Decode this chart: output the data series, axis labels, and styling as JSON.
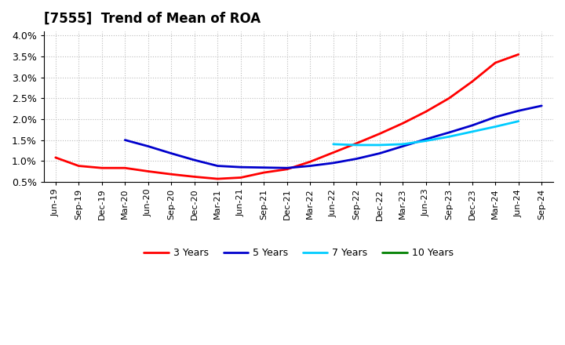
{
  "title": "[7555]  Trend of Mean of ROA",
  "x_labels": [
    "Jun-19",
    "Sep-19",
    "Dec-19",
    "Mar-20",
    "Jun-20",
    "Sep-20",
    "Dec-20",
    "Mar-21",
    "Jun-21",
    "Sep-21",
    "Dec-21",
    "Mar-22",
    "Jun-22",
    "Sep-22",
    "Dec-22",
    "Mar-23",
    "Jun-23",
    "Sep-23",
    "Dec-23",
    "Mar-24",
    "Jun-24",
    "Sep-24"
  ],
  "series": {
    "3 Years": {
      "color": "#ff0000",
      "data": [
        0.0108,
        0.0088,
        0.0083,
        0.0083,
        0.0075,
        0.0068,
        0.0062,
        0.0057,
        0.006,
        0.0072,
        0.008,
        0.0098,
        0.012,
        0.0142,
        0.0165,
        0.019,
        0.0218,
        0.025,
        0.029,
        0.0335,
        0.0355,
        null
      ]
    },
    "5 Years": {
      "color": "#0000cc",
      "data": [
        null,
        null,
        null,
        0.015,
        0.0135,
        0.0118,
        0.0102,
        0.0088,
        0.0085,
        0.0084,
        0.0083,
        0.0088,
        0.0095,
        0.0105,
        0.0118,
        0.0135,
        0.0152,
        0.0168,
        0.0185,
        0.0205,
        0.022,
        0.0232
      ]
    },
    "7 Years": {
      "color": "#00ccff",
      "data": [
        null,
        null,
        null,
        null,
        null,
        null,
        null,
        null,
        null,
        null,
        null,
        null,
        0.014,
        0.0138,
        0.0138,
        0.014,
        0.0148,
        0.0158,
        0.017,
        0.0182,
        0.0195,
        null
      ]
    },
    "10 Years": {
      "color": "#008000",
      "data": [
        null,
        null,
        null,
        null,
        null,
        null,
        null,
        null,
        null,
        null,
        null,
        null,
        null,
        null,
        null,
        null,
        null,
        null,
        null,
        null,
        null,
        null
      ]
    }
  },
  "ylim": [
    0.005,
    0.041
  ],
  "yticks": [
    0.005,
    0.01,
    0.015,
    0.02,
    0.025,
    0.03,
    0.035,
    0.04
  ],
  "ytick_labels": [
    "0.5%",
    "1.0%",
    "1.5%",
    "2.0%",
    "2.5%",
    "3.0%",
    "3.5%",
    "4.0%"
  ],
  "background_color": "#ffffff",
  "grid_color": "#bbbbbb"
}
